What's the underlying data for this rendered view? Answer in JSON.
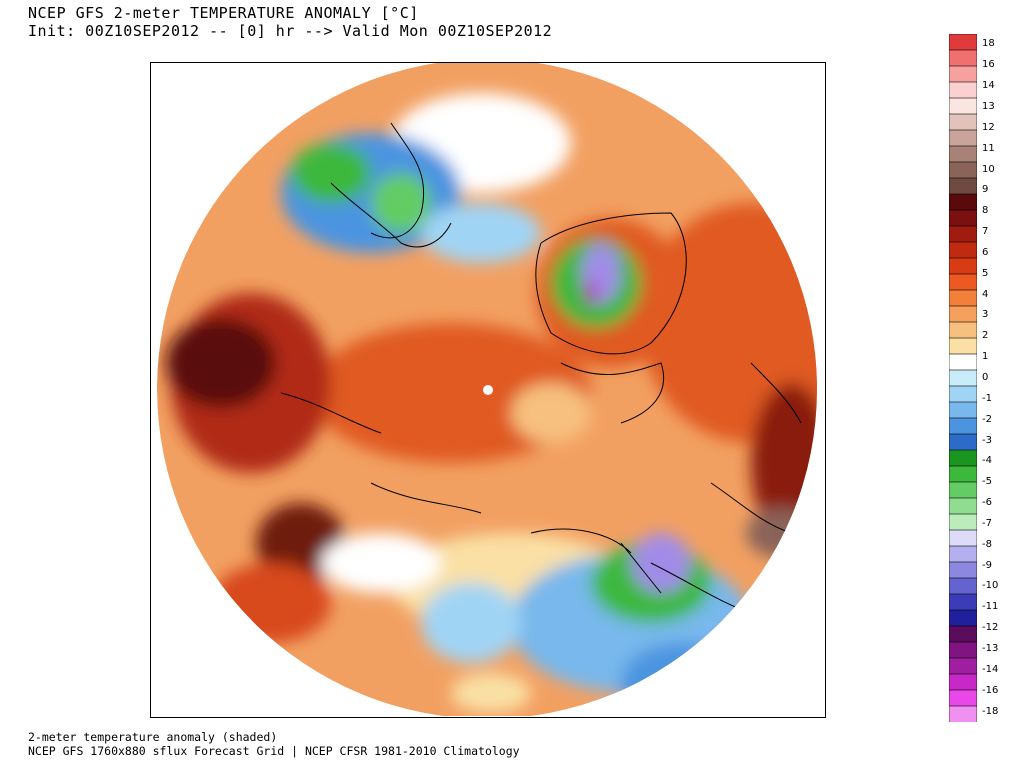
{
  "header": {
    "title_line1": "NCEP GFS 2-meter TEMPERATURE ANOMALY [°C]",
    "title_line2": "Init: 00Z10SEP2012 -- [0] hr --> Valid Mon 00Z10SEP2012"
  },
  "footer": {
    "line1": "2-meter temperature anomaly (shaded)",
    "line2": "NCEP GFS 1760x880 sflux Forecast Grid | NCEP CFSR 1981-2010 Climatology"
  },
  "colorbar": {
    "labels": [
      "18",
      "16",
      "14",
      "13",
      "12",
      "11",
      "10",
      "9",
      "8",
      "7",
      "6",
      "5",
      "4",
      "3",
      "2",
      "1",
      "0",
      "-1",
      "-2",
      "-3",
      "-4",
      "-5",
      "-6",
      "-7",
      "-8",
      "-9",
      "-10",
      "-11",
      "-12",
      "-13",
      "-14",
      "-16",
      "-18"
    ],
    "colors": [
      "#e03a3a",
      "#f07070",
      "#f6a0a0",
      "#fbd0d0",
      "#fbe5e0",
      "#e2c3bb",
      "#c9a49a",
      "#a88277",
      "#8a6458",
      "#6e4a40",
      "#5a0a0a",
      "#7a1010",
      "#a01c10",
      "#c02a10",
      "#d83c14",
      "#ec5a22",
      "#f2803a",
      "#f5a05c",
      "#f7c07e",
      "#fae0a4",
      "#ffffff",
      "#c8ecf8",
      "#a0d4f4",
      "#78b8ec",
      "#4c94e0",
      "#2c6cc8",
      "#1a9620",
      "#3cb83c",
      "#64cc64",
      "#90dc90",
      "#bcecbc",
      "#dcdcf8",
      "#b4b0f0",
      "#8c88e0",
      "#6464d0",
      "#3c3cb8",
      "#20209c",
      "#5c0c5c",
      "#801480",
      "#a01ea0",
      "#c828c8",
      "#e848e8",
      "#f090f0"
    ]
  },
  "map": {
    "colors": {
      "warm_strong": "#5a0a0a",
      "warm_mid": "#e05a22",
      "warm_light": "#f2a062",
      "neutral": "#ffffff",
      "cool_light": "#a0d4f4",
      "cool_mid": "#3c84dc",
      "cold_green": "#3cb83c",
      "cold_purple": "#a08ce8",
      "very_cold": "#b02cb0"
    }
  }
}
